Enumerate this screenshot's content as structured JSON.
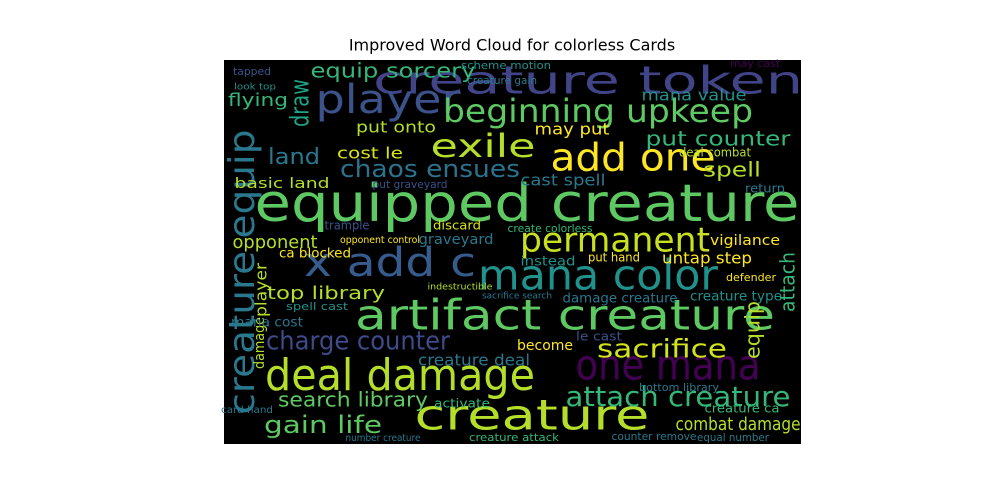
{
  "chart_data": {
    "type": "wordcloud",
    "title": "Improved Word Cloud for colorless Cards",
    "background": "#000000",
    "words": [
      {
        "text": "equipped creature",
        "color": "#5ec962"
      },
      {
        "text": "creature token",
        "color": "#414487"
      },
      {
        "text": "player",
        "color": "#3b528b"
      },
      {
        "text": "beginning upkeep",
        "color": "#5ec962"
      },
      {
        "text": "add one",
        "color": "#fde725"
      },
      {
        "text": "exile",
        "color": "#b5de2b"
      },
      {
        "text": "x add c",
        "color": "#365c8d"
      },
      {
        "text": "mana color",
        "color": "#21918c"
      },
      {
        "text": "permanent",
        "color": "#c8e020"
      },
      {
        "text": "artifact creature",
        "color": "#5ec962"
      },
      {
        "text": "deal damage",
        "color": "#b5de2b"
      },
      {
        "text": "one mana",
        "color": "#440154"
      },
      {
        "text": "creature",
        "color": "#b5de2b"
      },
      {
        "text": "attach creature",
        "color": "#35b779"
      },
      {
        "text": "charge counter",
        "color": "#3e4a89"
      },
      {
        "text": "sacrifice",
        "color": "#d2e21b"
      },
      {
        "text": "creature equip",
        "color": "#2a788e"
      },
      {
        "text": "draw",
        "color": "#20a486"
      },
      {
        "text": "equip sorcery",
        "color": "#35b779"
      },
      {
        "text": "flying",
        "color": "#35b779"
      },
      {
        "text": "land",
        "color": "#2a788e"
      },
      {
        "text": "chaos ensues",
        "color": "#2c728e"
      },
      {
        "text": "cost le",
        "color": "#d8e219"
      },
      {
        "text": "put onto",
        "color": "#b5de2b"
      },
      {
        "text": "basic land",
        "color": "#b5de2b"
      },
      {
        "text": "spell",
        "color": "#b5de2b"
      },
      {
        "text": "put counter",
        "color": "#35b779"
      },
      {
        "text": "cast spell",
        "color": "#2a788e"
      },
      {
        "text": "put graveyard",
        "color": "#3b528b"
      },
      {
        "text": "may put",
        "color": "#fde725"
      },
      {
        "text": "mana value",
        "color": "#21918c"
      },
      {
        "text": "scheme motion",
        "color": "#21918c"
      },
      {
        "text": "opponent",
        "color": "#b5de2b"
      },
      {
        "text": "player",
        "color": "#b5de2b"
      },
      {
        "text": "damage",
        "color": "#b5de2b"
      },
      {
        "text": "top library",
        "color": "#b5de2b"
      },
      {
        "text": "graveyard",
        "color": "#2a788e"
      },
      {
        "text": "discard",
        "color": "#d8e219"
      },
      {
        "text": "untap step",
        "color": "#fde725"
      },
      {
        "text": "instead",
        "color": "#21918c"
      },
      {
        "text": "put hand",
        "color": "#fde725"
      },
      {
        "text": "vigilance",
        "color": "#fde725"
      },
      {
        "text": "ca blocked",
        "color": "#fde725"
      },
      {
        "text": "attach",
        "color": "#35b779"
      },
      {
        "text": "equip",
        "color": "#b5de2b"
      },
      {
        "text": "damage creature",
        "color": "#2a788e"
      },
      {
        "text": "creature type",
        "color": "#21918c"
      },
      {
        "text": "creature deal",
        "color": "#2a788e"
      },
      {
        "text": "become",
        "color": "#fde725"
      },
      {
        "text": "le cast",
        "color": "#3b528b"
      },
      {
        "text": "mana cost",
        "color": "#2a788e"
      },
      {
        "text": "spell cast",
        "color": "#21918c"
      },
      {
        "text": "search library",
        "color": "#5ec962"
      },
      {
        "text": "gain life",
        "color": "#5ec962"
      },
      {
        "text": "combat damage",
        "color": "#b5de2b"
      },
      {
        "text": "creature ca",
        "color": "#35b779"
      },
      {
        "text": "activate",
        "color": "#35b779"
      },
      {
        "text": "bottom library",
        "color": "#2a788e"
      },
      {
        "text": "card hand",
        "color": "#2a788e"
      },
      {
        "text": "creature attack",
        "color": "#35b779"
      },
      {
        "text": "counter remove",
        "color": "#2a788e"
      },
      {
        "text": "equal number",
        "color": "#2a788e"
      },
      {
        "text": "number creature",
        "color": "#2a788e"
      },
      {
        "text": "tapped",
        "color": "#3b528b"
      },
      {
        "text": "may cast",
        "color": "#440154"
      },
      {
        "text": "deal combat",
        "color": "#b5de2b"
      },
      {
        "text": "return",
        "color": "#2a788e"
      },
      {
        "text": "defender",
        "color": "#fde725"
      },
      {
        "text": "trample",
        "color": "#3b528b"
      },
      {
        "text": "create colorless",
        "color": "#35b779"
      },
      {
        "text": "opponent control",
        "color": "#fde725"
      },
      {
        "text": "indestructible",
        "color": "#b5de2b"
      },
      {
        "text": "sacrifice search",
        "color": "#2a788e"
      },
      {
        "text": "creature gain",
        "color": "#2a788e"
      },
      {
        "text": "look top",
        "color": "#21918c"
      }
    ]
  }
}
